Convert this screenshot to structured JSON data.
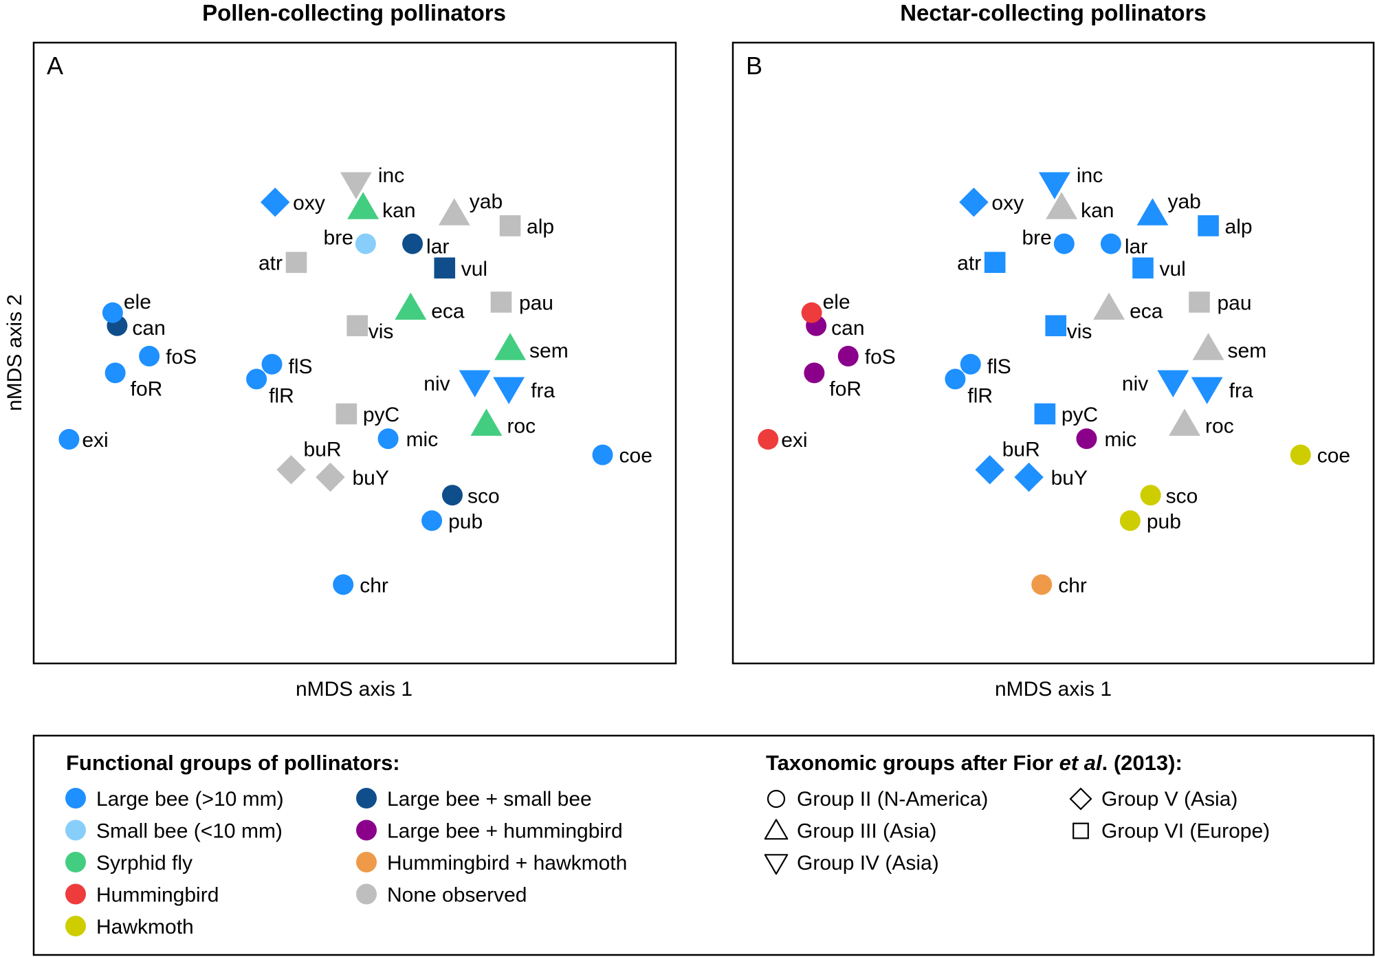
{
  "figure": {
    "legend_functional": {
      "title": "Functional groups of pollinators:",
      "items": [
        {
          "key": "large_bee",
          "label": "Large bee (>10 mm)",
          "color": "#1E90FF"
        },
        {
          "key": "small_bee",
          "label": "Small bee (<10 mm)",
          "color": "#87CEFA"
        },
        {
          "key": "syrphid",
          "label": "Syrphid fly",
          "color": "#43CD80"
        },
        {
          "key": "hummingbird",
          "label": "Hummingbird",
          "color": "#EE3B3B"
        },
        {
          "key": "hawkmoth",
          "label": "Hawkmoth",
          "color": "#CDCD00"
        },
        {
          "key": "large_small",
          "label": "Large bee + small bee",
          "color": "#104E8B"
        },
        {
          "key": "large_humming",
          "label": "Large bee + hummingbird",
          "color": "#8B008B"
        },
        {
          "key": "humming_hawk",
          "label": "Hummingbird + hawkmoth",
          "color": "#EE9A49"
        },
        {
          "key": "none",
          "label": "None observed",
          "color": "#BEBEBE"
        }
      ]
    },
    "legend_taxonomic": {
      "title_pre": "Taxonomic groups after Fior ",
      "title_italic": "et al",
      "title_post": ". (2013):",
      "items": [
        {
          "shape": "circle",
          "label": "Group II (N-America)"
        },
        {
          "shape": "triangle-up",
          "label": "Group III (Asia)"
        },
        {
          "shape": "triangle-down",
          "label": "Group IV (Asia)"
        },
        {
          "shape": "diamond",
          "label": "Group V (Asia)"
        },
        {
          "shape": "square",
          "label": "Group VI (Europe)"
        }
      ]
    }
  },
  "chart_data": [
    {
      "type": "scatter",
      "panel": "A",
      "title": "Pollen-collecting pollinators",
      "xlabel": "nMDS axis 1",
      "ylabel": "nMDS axis 2",
      "xlim": [
        0,
        1
      ],
      "ylim": [
        0,
        1
      ],
      "grid": false,
      "note": "axes have no tick labels; coordinates are relative ordination positions",
      "points": [
        {
          "label": "oxy",
          "x": 0.376,
          "y": 0.743,
          "shape": "diamond",
          "group": "large_bee"
        },
        {
          "label": "inc",
          "x": 0.502,
          "y": 0.773,
          "shape": "triangle-down",
          "group": "none"
        },
        {
          "label": "kan",
          "x": 0.513,
          "y": 0.734,
          "shape": "triangle-up",
          "group": "syrphid"
        },
        {
          "label": "yab",
          "x": 0.655,
          "y": 0.724,
          "shape": "triangle-up",
          "group": "none"
        },
        {
          "label": "alp",
          "x": 0.742,
          "y": 0.705,
          "shape": "square",
          "group": "none"
        },
        {
          "label": "bre",
          "x": 0.517,
          "y": 0.676,
          "shape": "circle",
          "group": "small_bee"
        },
        {
          "label": "lar",
          "x": 0.59,
          "y": 0.676,
          "shape": "circle",
          "group": "large_small"
        },
        {
          "label": "atr",
          "x": 0.409,
          "y": 0.646,
          "shape": "square",
          "group": "none"
        },
        {
          "label": "vul",
          "x": 0.64,
          "y": 0.637,
          "shape": "square",
          "group": "large_small"
        },
        {
          "label": "pau",
          "x": 0.728,
          "y": 0.582,
          "shape": "square",
          "group": "none"
        },
        {
          "label": "eca",
          "x": 0.587,
          "y": 0.572,
          "shape": "triangle-up",
          "group": "syrphid"
        },
        {
          "label": "vis",
          "x": 0.504,
          "y": 0.544,
          "shape": "square",
          "group": "none"
        },
        {
          "label": "can",
          "x": 0.13,
          "y": 0.544,
          "shape": "circle",
          "group": "large_small"
        },
        {
          "label": "ele",
          "x": 0.123,
          "y": 0.565,
          "shape": "circle",
          "group": "large_bee"
        },
        {
          "label": "foS",
          "x": 0.18,
          "y": 0.495,
          "shape": "circle",
          "group": "large_bee"
        },
        {
          "label": "foR",
          "x": 0.127,
          "y": 0.468,
          "shape": "circle",
          "group": "large_bee"
        },
        {
          "label": "exi",
          "x": 0.055,
          "y": 0.361,
          "shape": "circle",
          "group": "large_bee"
        },
        {
          "label": "flS",
          "x": 0.371,
          "y": 0.482,
          "shape": "circle",
          "group": "large_bee"
        },
        {
          "label": "flR",
          "x": 0.347,
          "y": 0.458,
          "shape": "circle",
          "group": "large_bee"
        },
        {
          "label": "sem",
          "x": 0.742,
          "y": 0.507,
          "shape": "triangle-up",
          "group": "syrphid"
        },
        {
          "label": "niv",
          "x": 0.687,
          "y": 0.454,
          "shape": "triangle-down",
          "group": "large_bee"
        },
        {
          "label": "fra",
          "x": 0.74,
          "y": 0.443,
          "shape": "triangle-down",
          "group": "large_bee"
        },
        {
          "label": "pyC",
          "x": 0.487,
          "y": 0.402,
          "shape": "square",
          "group": "none"
        },
        {
          "label": "roc",
          "x": 0.705,
          "y": 0.385,
          "shape": "triangle-up",
          "group": "syrphid"
        },
        {
          "label": "mic",
          "x": 0.552,
          "y": 0.362,
          "shape": "circle",
          "group": "large_bee"
        },
        {
          "label": "coe",
          "x": 0.886,
          "y": 0.336,
          "shape": "circle",
          "group": "large_bee"
        },
        {
          "label": "buR",
          "x": 0.401,
          "y": 0.312,
          "shape": "diamond",
          "group": "none"
        },
        {
          "label": "buY",
          "x": 0.462,
          "y": 0.3,
          "shape": "diamond",
          "group": "none"
        },
        {
          "label": "sco",
          "x": 0.652,
          "y": 0.271,
          "shape": "circle",
          "group": "large_small"
        },
        {
          "label": "pub",
          "x": 0.62,
          "y": 0.23,
          "shape": "circle",
          "group": "large_bee"
        },
        {
          "label": "chr",
          "x": 0.482,
          "y": 0.127,
          "shape": "circle",
          "group": "large_bee"
        }
      ]
    },
    {
      "type": "scatter",
      "panel": "B",
      "title": "Nectar-collecting pollinators",
      "xlabel": "nMDS axis 1",
      "ylabel": "",
      "xlim": [
        0,
        1
      ],
      "ylim": [
        0,
        1
      ],
      "grid": false,
      "note": "axes have no tick labels; coordinates are relative ordination positions",
      "points": [
        {
          "label": "oxy",
          "x": 0.376,
          "y": 0.743,
          "shape": "diamond",
          "group": "large_bee"
        },
        {
          "label": "inc",
          "x": 0.502,
          "y": 0.773,
          "shape": "triangle-down",
          "group": "large_bee"
        },
        {
          "label": "kan",
          "x": 0.513,
          "y": 0.734,
          "shape": "triangle-up",
          "group": "none"
        },
        {
          "label": "yab",
          "x": 0.655,
          "y": 0.724,
          "shape": "triangle-up",
          "group": "large_bee"
        },
        {
          "label": "alp",
          "x": 0.742,
          "y": 0.705,
          "shape": "square",
          "group": "large_bee"
        },
        {
          "label": "bre",
          "x": 0.517,
          "y": 0.676,
          "shape": "circle",
          "group": "large_bee"
        },
        {
          "label": "lar",
          "x": 0.59,
          "y": 0.676,
          "shape": "circle",
          "group": "large_bee"
        },
        {
          "label": "atr",
          "x": 0.409,
          "y": 0.646,
          "shape": "square",
          "group": "large_bee"
        },
        {
          "label": "vul",
          "x": 0.64,
          "y": 0.637,
          "shape": "square",
          "group": "large_bee"
        },
        {
          "label": "pau",
          "x": 0.728,
          "y": 0.582,
          "shape": "square",
          "group": "none"
        },
        {
          "label": "eca",
          "x": 0.587,
          "y": 0.572,
          "shape": "triangle-up",
          "group": "none"
        },
        {
          "label": "vis",
          "x": 0.504,
          "y": 0.544,
          "shape": "square",
          "group": "large_bee"
        },
        {
          "label": "can",
          "x": 0.13,
          "y": 0.544,
          "shape": "circle",
          "group": "large_humming"
        },
        {
          "label": "ele",
          "x": 0.123,
          "y": 0.565,
          "shape": "circle",
          "group": "hummingbird"
        },
        {
          "label": "foS",
          "x": 0.18,
          "y": 0.495,
          "shape": "circle",
          "group": "large_humming"
        },
        {
          "label": "foR",
          "x": 0.127,
          "y": 0.468,
          "shape": "circle",
          "group": "large_humming"
        },
        {
          "label": "exi",
          "x": 0.055,
          "y": 0.361,
          "shape": "circle",
          "group": "hummingbird"
        },
        {
          "label": "flS",
          "x": 0.371,
          "y": 0.482,
          "shape": "circle",
          "group": "large_bee"
        },
        {
          "label": "flR",
          "x": 0.347,
          "y": 0.458,
          "shape": "circle",
          "group": "large_bee"
        },
        {
          "label": "sem",
          "x": 0.742,
          "y": 0.507,
          "shape": "triangle-up",
          "group": "none"
        },
        {
          "label": "niv",
          "x": 0.687,
          "y": 0.454,
          "shape": "triangle-down",
          "group": "large_bee"
        },
        {
          "label": "fra",
          "x": 0.74,
          "y": 0.443,
          "shape": "triangle-down",
          "group": "large_bee"
        },
        {
          "label": "pyC",
          "x": 0.487,
          "y": 0.402,
          "shape": "square",
          "group": "large_bee"
        },
        {
          "label": "roc",
          "x": 0.705,
          "y": 0.385,
          "shape": "triangle-up",
          "group": "none"
        },
        {
          "label": "mic",
          "x": 0.552,
          "y": 0.362,
          "shape": "circle",
          "group": "large_humming"
        },
        {
          "label": "coe",
          "x": 0.886,
          "y": 0.336,
          "shape": "circle",
          "group": "hawkmoth"
        },
        {
          "label": "buR",
          "x": 0.401,
          "y": 0.312,
          "shape": "diamond",
          "group": "large_bee"
        },
        {
          "label": "buY",
          "x": 0.462,
          "y": 0.3,
          "shape": "diamond",
          "group": "large_bee"
        },
        {
          "label": "sco",
          "x": 0.652,
          "y": 0.271,
          "shape": "circle",
          "group": "hawkmoth"
        },
        {
          "label": "pub",
          "x": 0.62,
          "y": 0.23,
          "shape": "circle",
          "group": "hawkmoth"
        },
        {
          "label": "chr",
          "x": 0.482,
          "y": 0.127,
          "shape": "circle",
          "group": "humming_hawk"
        }
      ]
    }
  ]
}
